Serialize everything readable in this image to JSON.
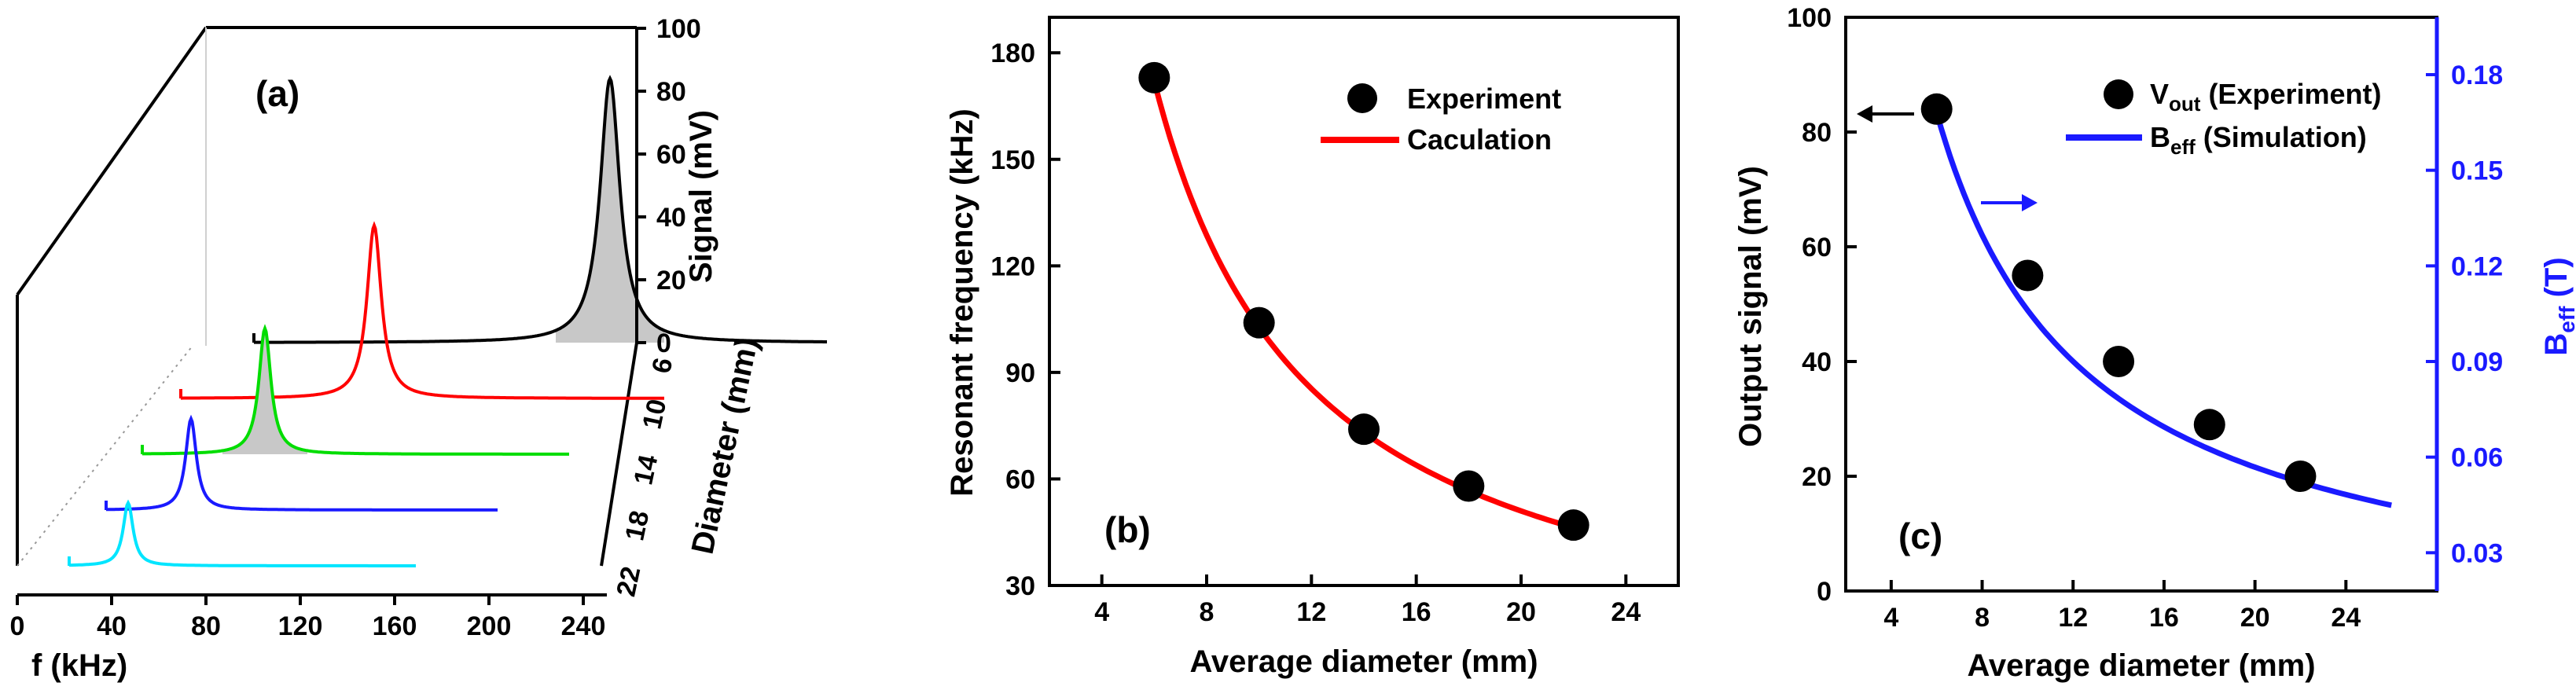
{
  "figure": {
    "panels": [
      "(a)",
      "(b)",
      "(c)"
    ]
  },
  "colors": {
    "black": "#000000",
    "red": "#ff0000",
    "green": "#00dd00",
    "blue": "#1a1aff",
    "cyan": "#00e5ff",
    "fill": "#c8c8c8"
  },
  "chart_data": [
    {
      "type": "line",
      "panel": "(a)",
      "xlabel": "f (kHz)",
      "ylabel": "Signal (mV)",
      "zlabel": "Diameter (mm)",
      "xlim": [
        0,
        250
      ],
      "x_ticks": [
        "0",
        "40",
        "80",
        "120",
        "160",
        "200",
        "240"
      ],
      "y_ticks": [
        "0",
        "20",
        "40",
        "60",
        "80",
        "100"
      ],
      "z_ticks": [
        "6",
        "10",
        "14",
        "18",
        "22"
      ],
      "ylim": [
        0,
        100
      ],
      "series": [
        {
          "diameter": 6,
          "peak_f": 173,
          "peak_signal": 84,
          "color": "#000000"
        },
        {
          "diameter": 10,
          "peak_f": 104,
          "peak_signal": 55,
          "color": "#ff0000"
        },
        {
          "diameter": 14,
          "peak_f": 74,
          "peak_signal": 40,
          "color": "#00dd00"
        },
        {
          "diameter": 18,
          "peak_f": 58,
          "peak_signal": 29,
          "color": "#1a1aff"
        },
        {
          "diameter": 22,
          "peak_f": 47,
          "peak_signal": 20,
          "color": "#00e5ff"
        }
      ]
    },
    {
      "type": "scatter",
      "panel": "(b)",
      "xlabel": "Average diameter (mm)",
      "ylabel": "Resonant frequency (kHz)",
      "xlim": [
        2,
        26
      ],
      "ylim": [
        30,
        190
      ],
      "x_ticks": [
        "4",
        "8",
        "12",
        "16",
        "20",
        "24"
      ],
      "y_ticks": [
        "30",
        "60",
        "90",
        "120",
        "150",
        "180"
      ],
      "legend": {
        "position": "top-right",
        "entries": [
          "Experiment",
          "Caculation"
        ]
      },
      "experiment": {
        "x": [
          6,
          10,
          14,
          18,
          22
        ],
        "y": [
          173,
          104,
          74,
          58,
          47
        ]
      },
      "calculation": {
        "x": [
          6,
          8,
          10,
          12,
          14,
          16,
          18,
          20,
          22
        ],
        "y": [
          172,
          131,
          104,
          86,
          74,
          65,
          58,
          52,
          46
        ]
      }
    },
    {
      "type": "scatter",
      "panel": "(c)",
      "xlabel": "Average diameter (mm)",
      "ylabel": "Output signal (mV)",
      "y2label_main": "B",
      "y2label_sub": "eff",
      "y2label_tail": " (T)",
      "xlim": [
        2,
        28
      ],
      "ylim": [
        0,
        100
      ],
      "y2lim": [
        0.018,
        0.198
      ],
      "x_ticks": [
        "4",
        "8",
        "12",
        "16",
        "20",
        "24"
      ],
      "y_ticks": [
        "0",
        "20",
        "40",
        "60",
        "80",
        "100"
      ],
      "y2_ticks": [
        "0.03",
        "0.06",
        "0.09",
        "0.12",
        "0.15",
        "0.18"
      ],
      "legend": {
        "position": "top-right",
        "entry1_main": "V",
        "entry1_sub": "out",
        "entry1_tail": " (Experiment)",
        "entry2_main": "B",
        "entry2_sub": "eff",
        "entry2_tail": " (Simulation)"
      },
      "experiment": {
        "x": [
          6,
          10,
          14,
          18,
          22
        ],
        "y": [
          84,
          55,
          40,
          29,
          20
        ]
      },
      "simulation": {
        "x": [
          6,
          8,
          10,
          12,
          14,
          16,
          18,
          20,
          22,
          24,
          26
        ],
        "y": [
          0.168,
          0.136,
          0.116,
          0.099,
          0.087,
          0.077,
          0.069,
          0.062,
          0.055,
          0.05,
          0.045
        ]
      }
    }
  ]
}
